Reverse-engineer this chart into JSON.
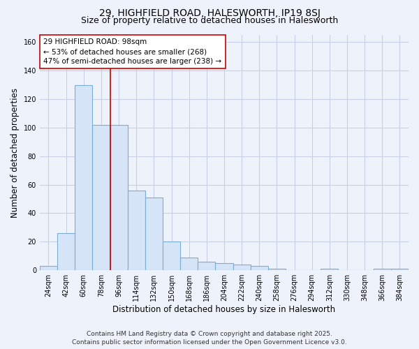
{
  "title": "29, HIGHFIELD ROAD, HALESWORTH, IP19 8SJ",
  "subtitle": "Size of property relative to detached houses in Halesworth",
  "xlabel": "Distribution of detached houses by size in Halesworth",
  "ylabel": "Number of detached properties",
  "categories": [
    "24sqm",
    "42sqm",
    "60sqm",
    "78sqm",
    "96sqm",
    "114sqm",
    "132sqm",
    "150sqm",
    "168sqm",
    "186sqm",
    "204sqm",
    "222sqm",
    "240sqm",
    "258sqm",
    "276sqm",
    "294sqm",
    "312sqm",
    "330sqm",
    "348sqm",
    "366sqm",
    "384sqm"
  ],
  "values": [
    3,
    26,
    130,
    102,
    102,
    56,
    51,
    20,
    9,
    6,
    5,
    4,
    3,
    1,
    0,
    0,
    1,
    0,
    0,
    1,
    1
  ],
  "bar_color": "#d6e4f7",
  "bar_edge_color": "#7aadd4",
  "vline_position": 4,
  "vline_color": "#cc0000",
  "annotation_text": "29 HIGHFIELD ROAD: 98sqm\n← 53% of detached houses are smaller (268)\n47% of semi-detached houses are larger (238) →",
  "annotation_box_color": "white",
  "annotation_box_edge": "#cc0000",
  "ylim": [
    0,
    165
  ],
  "yticks": [
    0,
    20,
    40,
    60,
    80,
    100,
    120,
    140,
    160
  ],
  "fig_bg_color": "#eef2fb",
  "plot_bg_color": "#eef2fb",
  "grid_color": "#c8d0e8",
  "footer": "Contains HM Land Registry data © Crown copyright and database right 2025.\nContains public sector information licensed under the Open Government Licence v3.0.",
  "title_fontsize": 10,
  "subtitle_fontsize": 9,
  "xlabel_fontsize": 8.5,
  "ylabel_fontsize": 8.5,
  "tick_fontsize": 7,
  "annotation_fontsize": 7.5,
  "footer_fontsize": 6.5
}
